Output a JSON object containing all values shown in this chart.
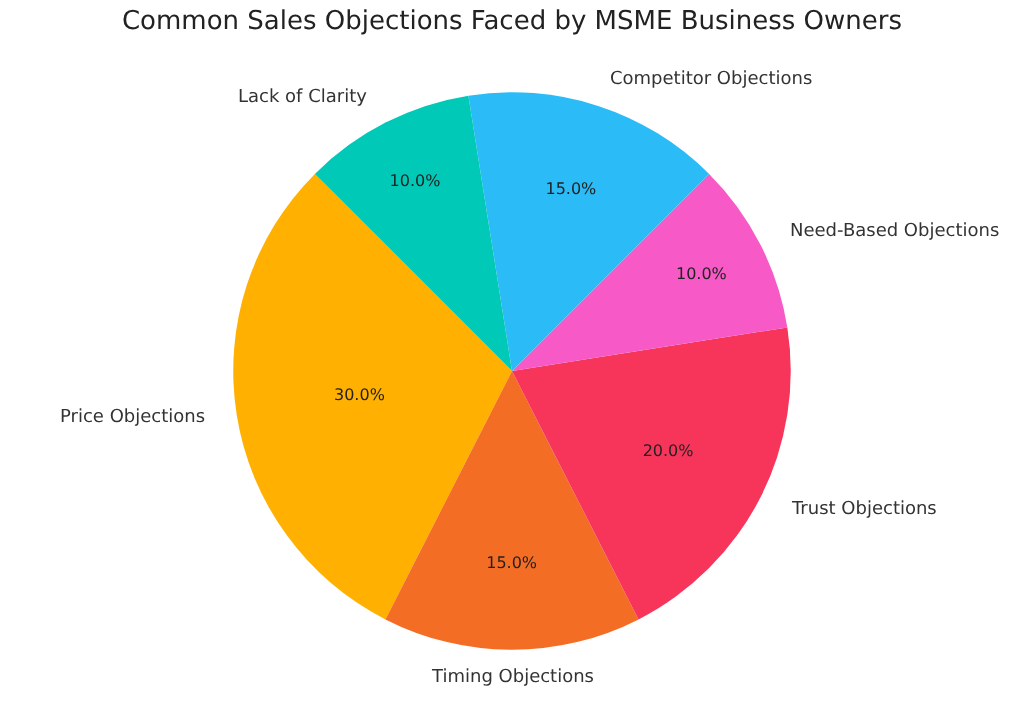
{
  "chart_data": {
    "type": "pie",
    "title": "Common Sales Objections Faced by MSME Business Owners",
    "categories": [
      "Price Objections",
      "Timing Objections",
      "Trust Objections",
      "Need-Based Objections",
      "Competitor Objections",
      "Lack of Clarity"
    ],
    "values": [
      30,
      15,
      20,
      10,
      15,
      10
    ],
    "value_labels": [
      "30.0%",
      "15.0%",
      "20.0%",
      "10.0%",
      "15.0%",
      "10.0%"
    ],
    "colors": [
      "#ffb000",
      "#f46d25",
      "#f7345a",
      "#f75ac6",
      "#2bbcf7",
      "#00c9b8"
    ],
    "legend": false
  }
}
